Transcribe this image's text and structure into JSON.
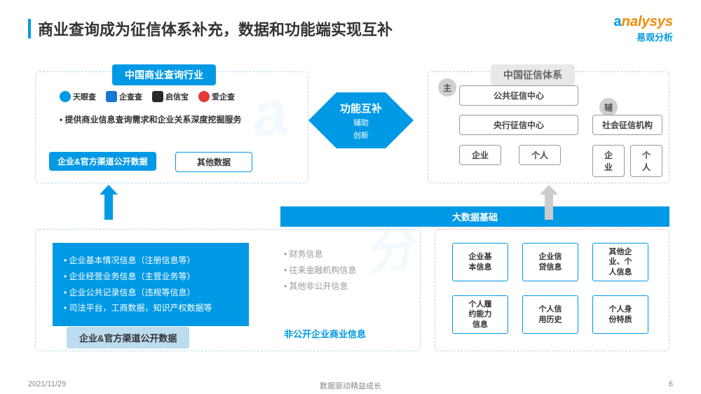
{
  "colors": {
    "primary": "#0099e5",
    "orange": "#f28c00",
    "light_blue": "#bcdcf0",
    "dashed_blue": "#b8d4e8",
    "gray_badge": "#d0d0d0",
    "text_gray": "#999999"
  },
  "header": {
    "title": "商业查询成为征信体系补充，数据和功能端实现互补",
    "logo_text": "nalysys",
    "logo_sub": "易观分析"
  },
  "left_section": {
    "title": "中国商业查询行业",
    "companies": [
      {
        "name": "天眼查",
        "icon_color": "#0099e5"
      },
      {
        "name": "企查查",
        "icon_color": "#1976d2"
      },
      {
        "name": "启信宝",
        "icon_color": "#2a2a2a"
      },
      {
        "name": "爱企查",
        "icon_color": "#e53935"
      }
    ],
    "desc": "提供商业信息查询需求和企业关系深度挖掘服务",
    "chip_filled": "企业&官方渠道公开数据",
    "chip_outline": "其他数据"
  },
  "center": {
    "main": "功能互补",
    "sub1": "辅助",
    "sub2": "创新"
  },
  "right_section": {
    "title": "中国征信体系",
    "badge_main": "主",
    "badge_aux": "辅",
    "main_boxes": [
      "公共征信中心",
      "央行征信中心"
    ],
    "main_sub": [
      "企业",
      "个人"
    ],
    "aux_box": "社会征信机构",
    "aux_sub": [
      "企业",
      "个人"
    ]
  },
  "band": "大数据基础",
  "bottom_left": {
    "blue_items": [
      "企业基本情况信息（注册信息等）",
      "企业经营业务信息（主营业务等）",
      "企业公共记录信息（违规等信息）",
      "司法平台，工商数据，知识产权数据等"
    ],
    "gray_items": [
      "财务信息",
      "往来金融机构信息",
      "其他非公开信息"
    ],
    "caption_bar": "企业&官方渠道公开数据",
    "caption_text": "非公开企业商业信息"
  },
  "bottom_right": {
    "chips": [
      "企业基\n本信息",
      "企业信\n贷信息",
      "其他企\n业、个\n人信息",
      "个人履\n约能力\n信息",
      "个人信\n用历史",
      "个人身\n份特质"
    ]
  },
  "footer": {
    "date": "2021/11/29",
    "center": "数据驱动精益成长",
    "page": "6"
  }
}
